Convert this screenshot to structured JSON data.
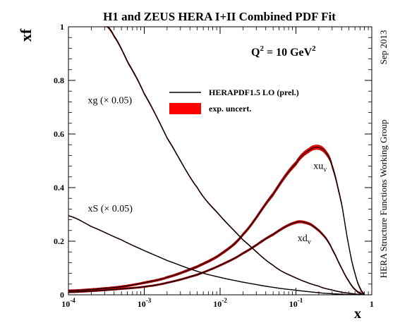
{
  "colors": {
    "line": "#000000",
    "band": "#ff0000",
    "band_edge": "#8b0000",
    "background": "#ffffff"
  },
  "side_labels": {
    "date": "Sep 2013",
    "group": "HERA Structure Functions Working Group"
  },
  "chart_data": {
    "type": "line",
    "title": "H1 and ZEUS HERA I+II Combined PDF Fit",
    "xlabel": "x",
    "ylabel": "xf",
    "xscale": "log",
    "xlim": [
      0.0001,
      1
    ],
    "ylim": [
      0,
      1
    ],
    "x_ticks": [
      {
        "value": 0.0001,
        "base": "10",
        "exp": "-4"
      },
      {
        "value": 0.001,
        "base": "10",
        "exp": "-3"
      },
      {
        "value": 0.01,
        "base": "10",
        "exp": "-2"
      },
      {
        "value": 0.1,
        "base": "10",
        "exp": "-1"
      },
      {
        "value": 1,
        "base": "1",
        "exp": ""
      }
    ],
    "y_ticks": [
      {
        "value": 0,
        "label": "0"
      },
      {
        "value": 0.2,
        "label": "0.2"
      },
      {
        "value": 0.4,
        "label": "0.4"
      },
      {
        "value": 0.6,
        "label": "0.6"
      },
      {
        "value": 0.8,
        "label": "0.8"
      },
      {
        "value": 1,
        "label": "1"
      }
    ],
    "scale_annotation": {
      "base": "Q",
      "sup": "2",
      "mid": " = 10 GeV",
      "sup2": "2"
    },
    "legend": {
      "position": "top-center",
      "entries": [
        {
          "label": "HERAPDF1.5 LO (prel.)",
          "style": "line"
        },
        {
          "label": "exp. uncert.",
          "style": "band"
        }
      ]
    },
    "series": [
      {
        "label": "xg (× 0.05)",
        "label_pos": {
          "x": 0.00018,
          "y": 0.715
        },
        "x": [
          0.0003,
          0.0004,
          0.0006,
          0.001,
          0.002,
          0.005,
          0.01,
          0.02,
          0.05,
          0.1,
          0.2,
          0.3,
          0.4,
          0.5,
          0.6,
          0.7,
          0.8
        ],
        "y": [
          1.01,
          0.965,
          0.87,
          0.75,
          0.585,
          0.4,
          0.295,
          0.205,
          0.11,
          0.063,
          0.032,
          0.018,
          0.01,
          0.006,
          0.003,
          0.001,
          0.0
        ],
        "band": 0.003
      },
      {
        "label": "xS (× 0.05)",
        "label_pos": {
          "x": 0.00018,
          "y": 0.31
        },
        "x": [
          0.0001,
          0.0002,
          0.0005,
          0.001,
          0.002,
          0.005,
          0.01,
          0.02,
          0.05,
          0.1,
          0.2,
          0.3,
          0.5,
          0.7
        ],
        "y": [
          0.295,
          0.255,
          0.205,
          0.165,
          0.128,
          0.088,
          0.065,
          0.047,
          0.028,
          0.017,
          0.008,
          0.004,
          0.001,
          0.0
        ],
        "band": 0.002
      },
      {
        "label": "xu",
        "label_sub": "v",
        "label_pos": {
          "x": 0.17,
          "y": 0.47
        },
        "x": [
          0.0001,
          0.0002,
          0.0005,
          0.001,
          0.002,
          0.005,
          0.01,
          0.02,
          0.05,
          0.1,
          0.15,
          0.2,
          0.25,
          0.3,
          0.4,
          0.5,
          0.6,
          0.7,
          0.8
        ],
        "y": [
          0.015,
          0.02,
          0.03,
          0.045,
          0.065,
          0.105,
          0.15,
          0.225,
          0.375,
          0.49,
          0.54,
          0.55,
          0.53,
          0.48,
          0.34,
          0.18,
          0.08,
          0.025,
          0.002
        ],
        "band": 0.009
      },
      {
        "label": "xd",
        "label_sub": "v",
        "label_pos": {
          "x": 0.105,
          "y": 0.2
        },
        "x": [
          0.0001,
          0.0002,
          0.0005,
          0.001,
          0.002,
          0.005,
          0.01,
          0.02,
          0.05,
          0.1,
          0.15,
          0.2,
          0.25,
          0.3,
          0.4,
          0.5,
          0.6,
          0.7,
          0.8
        ],
        "y": [
          0.01,
          0.014,
          0.022,
          0.03,
          0.045,
          0.075,
          0.11,
          0.155,
          0.225,
          0.27,
          0.265,
          0.24,
          0.21,
          0.17,
          0.1,
          0.05,
          0.02,
          0.006,
          0.0
        ],
        "band": 0.007
      }
    ]
  }
}
